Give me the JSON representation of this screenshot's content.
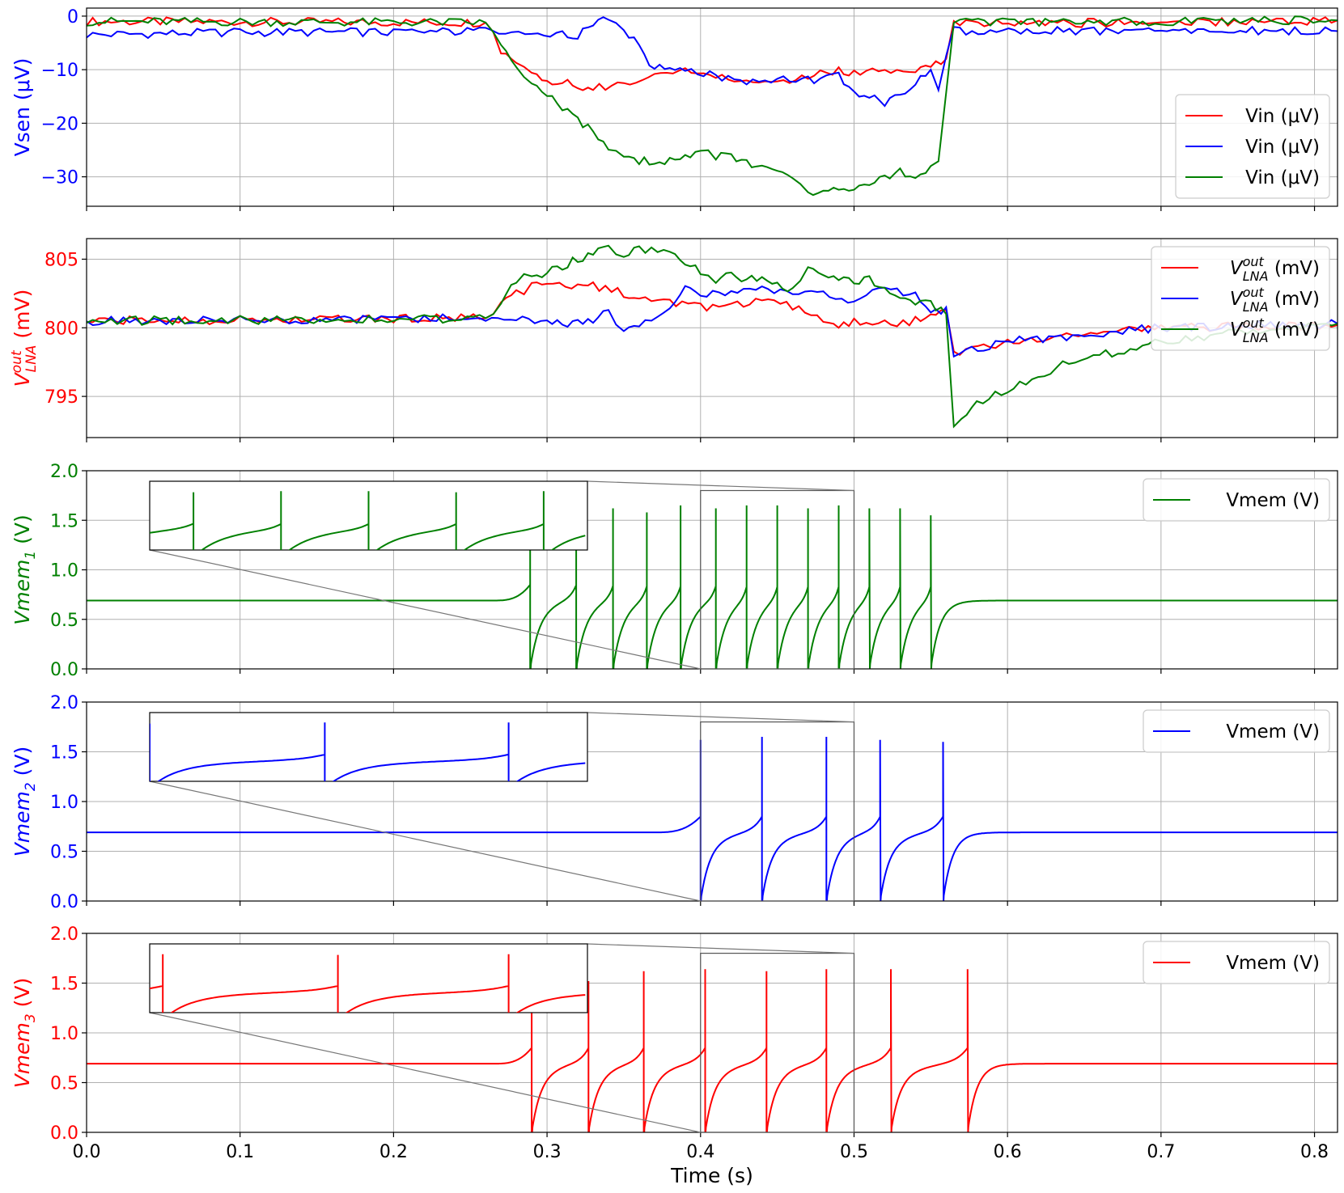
{
  "x_axis": {
    "label": "Time (s)",
    "range": [
      0.0,
      0.815
    ],
    "ticks": [
      0.0,
      0.1,
      0.2,
      0.3,
      0.4,
      0.5,
      0.6,
      0.7,
      0.8
    ],
    "tick_labels": [
      "0.0",
      "0.1",
      "0.2",
      "0.3",
      "0.4",
      "0.5",
      "0.6",
      "0.7",
      "0.8"
    ]
  },
  "chart_data": [
    {
      "type": "line",
      "ylabel": "Vsen (μV)",
      "ylabel_color": "#0000ff",
      "ylim": [
        -35.5,
        1.5
      ],
      "yticks": [
        0,
        -10,
        -20,
        -30
      ],
      "ytick_labels": [
        "0",
        "−10",
        "−20",
        "−30"
      ],
      "ytick_color": "#0000ff",
      "grid": true,
      "legend_position": "lower-right",
      "series": [
        {
          "name": "Vin (μV)",
          "color": "#ff0000",
          "x": [
            0.0,
            0.26,
            0.265,
            0.27,
            0.28,
            0.29,
            0.3,
            0.31,
            0.32,
            0.33,
            0.35,
            0.37,
            0.39,
            0.41,
            0.43,
            0.45,
            0.47,
            0.49,
            0.5,
            0.52,
            0.54,
            0.55,
            0.56,
            0.565,
            0.815
          ],
          "y": [
            -1,
            -1.2,
            -3,
            -7,
            -9,
            -11,
            -12,
            -12.5,
            -13,
            -13.5,
            -12.5,
            -11,
            -10.5,
            -11,
            -12,
            -12.5,
            -11.5,
            -10,
            -10.5,
            -10,
            -10.5,
            -9,
            -8,
            -1.5,
            -0.8
          ]
        },
        {
          "name": "Vin (μV)",
          "color": "#0000ff",
          "x": [
            0.0,
            0.1,
            0.2,
            0.26,
            0.29,
            0.31,
            0.32,
            0.33,
            0.34,
            0.35,
            0.36,
            0.37,
            0.38,
            0.39,
            0.41,
            0.43,
            0.45,
            0.47,
            0.49,
            0.5,
            0.51,
            0.52,
            0.53,
            0.54,
            0.55,
            0.555,
            0.565,
            0.815
          ],
          "y": [
            -3.5,
            -3,
            -3,
            -2.8,
            -3,
            -3.5,
            -3.5,
            -2,
            0,
            -2,
            -6,
            -10,
            -9.5,
            -10,
            -11,
            -12.5,
            -12,
            -12,
            -11,
            -14,
            -15,
            -16,
            -15,
            -12,
            -10,
            -13.5,
            -2.8,
            -2.8
          ]
        },
        {
          "name": "Vin (μV)",
          "color": "#008000",
          "x": [
            0.0,
            0.26,
            0.265,
            0.27,
            0.28,
            0.29,
            0.3,
            0.31,
            0.32,
            0.33,
            0.34,
            0.35,
            0.36,
            0.37,
            0.38,
            0.39,
            0.4,
            0.41,
            0.42,
            0.43,
            0.44,
            0.45,
            0.46,
            0.47,
            0.48,
            0.49,
            0.5,
            0.51,
            0.52,
            0.53,
            0.54,
            0.55,
            0.555,
            0.565,
            0.815
          ],
          "y": [
            -1,
            -1.2,
            -3,
            -6,
            -10,
            -13,
            -15,
            -17,
            -19,
            -22,
            -24.5,
            -25.5,
            -27,
            -27.5,
            -27,
            -26.5,
            -25.5,
            -26,
            -26.5,
            -27.5,
            -28.5,
            -29,
            -29.5,
            -33.5,
            -33,
            -32.5,
            -33,
            -31,
            -30,
            -29,
            -29.5,
            -28,
            -27,
            -1.2,
            -0.8
          ]
        }
      ]
    },
    {
      "type": "line",
      "ylabel": "V_LNA^out (mV)",
      "ylabel_main": "V",
      "ylabel_sup": "out",
      "ylabel_sub": "LNA",
      "ylabel_unit": " (mV)",
      "ylabel_color": "#ff0000",
      "ylim": [
        792.0,
        806.5
      ],
      "yticks": [
        795,
        800,
        805
      ],
      "ytick_labels": [
        "795",
        "800",
        "805"
      ],
      "ytick_color": "#ff0000",
      "grid": true,
      "legend_position": "upper-right",
      "series": [
        {
          "name": "V_LNA^out (mV)",
          "legend_main": "V",
          "legend_sup": "out",
          "legend_sub": "LNA",
          "legend_unit": " (mV)",
          "color": "#ff0000",
          "x": [
            0.0,
            0.26,
            0.265,
            0.27,
            0.28,
            0.29,
            0.3,
            0.32,
            0.33,
            0.35,
            0.36,
            0.38,
            0.4,
            0.42,
            0.44,
            0.46,
            0.48,
            0.49,
            0.5,
            0.52,
            0.54,
            0.55,
            0.56,
            0.565,
            0.6,
            0.65,
            0.7,
            0.815
          ],
          "y": [
            800.5,
            800.7,
            801,
            802,
            802.5,
            803,
            803.2,
            803,
            803,
            802.5,
            802,
            801.8,
            801.5,
            801.5,
            802,
            801.5,
            800.5,
            800,
            800.5,
            800.3,
            800.5,
            801,
            801.3,
            798.2,
            799,
            799.5,
            800,
            800.2
          ]
        },
        {
          "name": "V_LNA^out (mV)",
          "legend_main": "V",
          "legend_sup": "out",
          "legend_sub": "LNA",
          "legend_unit": " (mV)",
          "color": "#0000ff",
          "x": [
            0.0,
            0.26,
            0.3,
            0.31,
            0.32,
            0.33,
            0.34,
            0.35,
            0.36,
            0.38,
            0.39,
            0.4,
            0.42,
            0.44,
            0.46,
            0.48,
            0.5,
            0.52,
            0.54,
            0.55,
            0.56,
            0.565,
            0.6,
            0.65,
            0.7,
            0.815
          ],
          "y": [
            800.5,
            800.7,
            800.5,
            800.2,
            800.3,
            800.6,
            801.2,
            799.8,
            800,
            801.5,
            803,
            802.5,
            802.5,
            803,
            802.5,
            802.5,
            802,
            802.8,
            802.5,
            801,
            801.5,
            798,
            799,
            799.5,
            800,
            800.3
          ]
        },
        {
          "name": "V_LNA^out (mV)",
          "legend_main": "V",
          "legend_sup": "out",
          "legend_sub": "LNA",
          "legend_unit": " (mV)",
          "color": "#008000",
          "x": [
            0.0,
            0.26,
            0.265,
            0.27,
            0.28,
            0.29,
            0.3,
            0.31,
            0.32,
            0.33,
            0.34,
            0.35,
            0.36,
            0.38,
            0.39,
            0.4,
            0.41,
            0.42,
            0.43,
            0.44,
            0.45,
            0.46,
            0.47,
            0.48,
            0.49,
            0.5,
            0.51,
            0.52,
            0.53,
            0.54,
            0.55,
            0.56,
            0.565,
            0.57,
            0.58,
            0.6,
            0.62,
            0.64,
            0.66,
            0.68,
            0.7,
            0.72,
            0.74,
            0.76,
            0.78,
            0.8,
            0.815
          ],
          "y": [
            800.5,
            800.7,
            801,
            802,
            803.5,
            803.8,
            804,
            804.5,
            805,
            805.5,
            805.8,
            805.2,
            805.8,
            805.5,
            804.8,
            804,
            803.5,
            803.8,
            803.5,
            803.8,
            803,
            802.8,
            804.3,
            804,
            803.5,
            803.5,
            803.5,
            803,
            802,
            802,
            801.8,
            801,
            792.8,
            793.5,
            794.5,
            795.5,
            796.5,
            797.5,
            798,
            798.5,
            799,
            799.3,
            799.5,
            799.8,
            800,
            800.2,
            800.3
          ]
        }
      ]
    },
    {
      "type": "line",
      "ylabel": "Vmem_1 (V)",
      "ylabel_main": "Vmem",
      "ylabel_sub": "1",
      "ylabel_unit": " (V)",
      "ylabel_color": "#008000",
      "ylim": [
        0,
        2
      ],
      "yticks": [
        0.0,
        0.5,
        1.0,
        1.5,
        2.0
      ],
      "ytick_labels": [
        "0.0",
        "0.5",
        "1.0",
        "1.5",
        "2.0"
      ],
      "ytick_color": "#008000",
      "grid": true,
      "legend_position": "upper-right",
      "series": [
        {
          "name": "Vmem (V)",
          "color": "#008000",
          "baseline": 0.69,
          "spike_start": 0.265,
          "recover_end": 0.57,
          "spike_times": [
            0.289,
            0.319,
            0.343,
            0.365,
            0.387,
            0.41,
            0.43,
            0.45,
            0.47,
            0.49,
            0.51,
            0.53,
            0.55
          ],
          "spike_peaks": [
            1.2,
            1.6,
            1.62,
            1.58,
            1.65,
            1.62,
            1.65,
            1.65,
            1.62,
            1.65,
            1.62,
            1.62,
            1.55
          ]
        }
      ],
      "inset": {
        "x_range": [
          0.4,
          0.5
        ],
        "y_top": 1.8,
        "spike_times": [
          0.41,
          0.43,
          0.45,
          0.47,
          0.49
        ]
      }
    },
    {
      "type": "line",
      "ylabel": "Vmem_2 (V)",
      "ylabel_main": "Vmem",
      "ylabel_sub": "2",
      "ylabel_unit": " (V)",
      "ylabel_color": "#0000ff",
      "ylim": [
        0,
        2
      ],
      "yticks": [
        0.0,
        0.5,
        1.0,
        1.5,
        2.0
      ],
      "ytick_labels": [
        "0.0",
        "0.5",
        "1.0",
        "1.5",
        "2.0"
      ],
      "ytick_color": "#0000ff",
      "grid": true,
      "legend_position": "upper-right",
      "series": [
        {
          "name": "Vmem (V)",
          "color": "#0000ff",
          "baseline": 0.69,
          "spike_start": 0.37,
          "recover_end": 0.58,
          "spike_times": [
            0.4,
            0.44,
            0.482,
            0.517,
            0.558
          ],
          "spike_peaks": [
            1.62,
            1.65,
            1.65,
            1.62,
            1.6
          ]
        }
      ],
      "inset": {
        "x_range": [
          0.4,
          0.5
        ],
        "y_top": 1.8,
        "spike_times": [
          0.44,
          0.482
        ]
      }
    },
    {
      "type": "line",
      "ylabel": "Vmem_3 (V)",
      "ylabel_main": "Vmem",
      "ylabel_sub": "3",
      "ylabel_unit": " (V)",
      "ylabel_color": "#ff0000",
      "ylim": [
        0,
        2
      ],
      "yticks": [
        0.0,
        0.5,
        1.0,
        1.5,
        2.0
      ],
      "ytick_labels": [
        "0.0",
        "0.5",
        "1.0",
        "1.5",
        "2.0"
      ],
      "ytick_color": "#ff0000",
      "grid": true,
      "legend_position": "upper-right",
      "series": [
        {
          "name": "Vmem (V)",
          "color": "#ff0000",
          "baseline": 0.69,
          "spike_start": 0.265,
          "recover_end": 0.6,
          "spike_times": [
            0.29,
            0.327,
            0.363,
            0.403,
            0.443,
            0.482,
            0.524,
            0.574
          ],
          "spike_peaks": [
            1.2,
            1.52,
            1.62,
            1.64,
            1.62,
            1.64,
            1.64,
            1.64
          ]
        }
      ],
      "inset": {
        "x_range": [
          0.4,
          0.5
        ],
        "y_top": 1.8,
        "spike_times": [
          0.403,
          0.443,
          0.482
        ]
      }
    }
  ]
}
